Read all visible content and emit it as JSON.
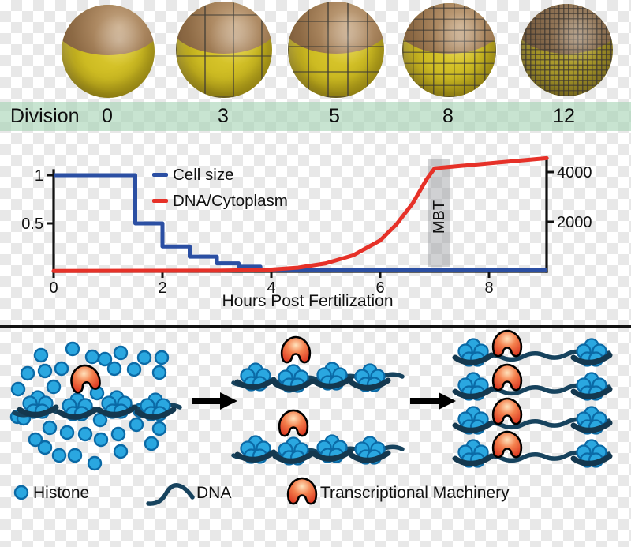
{
  "colors": {
    "cell_size_line": "#2b4fa3",
    "dna_cytoplasm_line": "#e63128",
    "histone_fill": "#2aa7e0",
    "histone_stroke": "#0b6aa6",
    "dna_strand": "#17435e",
    "nucleosome_wrap": "#14384f",
    "machinery_edge": "#dd3a22",
    "mbt_band": "#c6c8ca",
    "division_band": "#cee7d6"
  },
  "embryo_row": {
    "label": "Division",
    "stages": [
      "0",
      "3",
      "5",
      "8",
      "12"
    ]
  },
  "chart_data": {
    "type": "line",
    "x_axis": {
      "label": "Hours Post Fertilization",
      "ticks": [
        0,
        2,
        4,
        6,
        8
      ],
      "range": [
        0,
        9.06
      ]
    },
    "left_axis": {
      "ticks": [
        1,
        0.5
      ],
      "range": [
        0,
        1.18
      ]
    },
    "right_axis": {
      "ticks": [
        4000,
        2000
      ],
      "range": [
        0,
        4650
      ]
    },
    "grid": false,
    "legend_position": "top-left-inside",
    "series": [
      {
        "name": "Cell size",
        "color": "#2b4fa3",
        "axis": "left",
        "style": "step",
        "x": [
          0,
          1.5,
          2,
          2.5,
          3,
          3.4,
          3.8
        ],
        "y": [
          1,
          0.5,
          0.26,
          0.155,
          0.085,
          0.05,
          0.02
        ],
        "end_x": 9.06
      },
      {
        "name": "DNA/Cytoplasm",
        "color": "#e63128",
        "axis": "right",
        "style": "line",
        "points": [
          [
            0,
            25
          ],
          [
            3,
            35
          ],
          [
            3.5,
            50
          ],
          [
            4,
            80
          ],
          [
            4.5,
            160
          ],
          [
            5,
            330
          ],
          [
            5.5,
            650
          ],
          [
            6,
            1250
          ],
          [
            6.3,
            1900
          ],
          [
            6.6,
            2750
          ],
          [
            6.85,
            3700
          ],
          [
            7.0,
            4150
          ],
          [
            9.06,
            4560
          ]
        ]
      }
    ],
    "annotation": {
      "label": "MBT",
      "x_start": 6.87,
      "x_end": 7.28
    }
  },
  "diagram": {
    "panel_counts": [
      {
        "free_histones": 34,
        "dna_strands": 1,
        "nucleosomes_per_strand": 4,
        "transcriptional_machinery": 1
      },
      {
        "free_histones": 0,
        "dna_strands": 2,
        "nucleosomes_per_strand": 4,
        "transcriptional_machinery": 2
      },
      {
        "free_histones": 0,
        "dna_strands": 4,
        "nucleosomes_per_strand": 2,
        "transcriptional_machinery": 4
      }
    ],
    "legend": {
      "histone": "Histone",
      "dna": "DNA",
      "machinery": "Transcriptional Machinery"
    }
  }
}
